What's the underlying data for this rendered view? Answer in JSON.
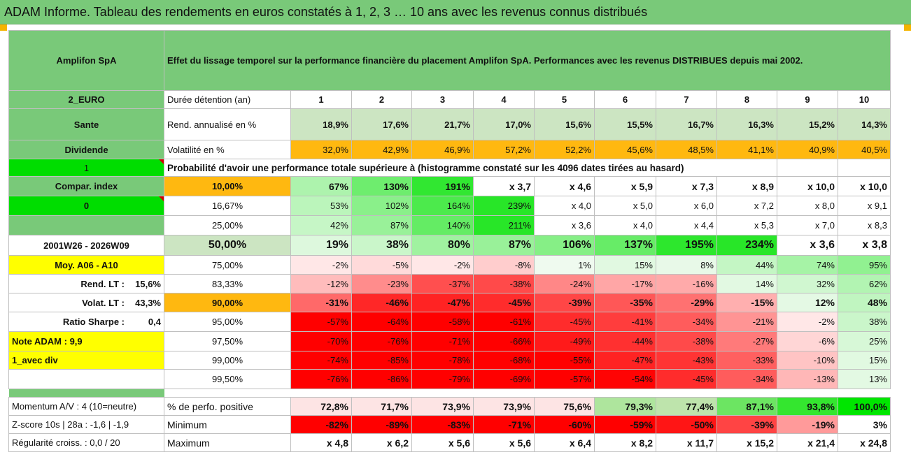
{
  "title": "ADAM Informe. Tableau des rendements en euros constatés à 1, 2, 3 … 10 ans avec les revenus connus distribués",
  "left": {
    "company": "Amplifon SpA",
    "ticker": "2_EURO",
    "sector": "Sante",
    "dividend_label": "Dividende",
    "dividend_value": "1",
    "compar_index_label": "Compar. index",
    "compar_index_value": "0",
    "period": "2001W26 - 2026W09",
    "moy": "Moy. A06 - A10",
    "rend_lt_label": "Rend. LT :",
    "rend_lt_value": "15,6%",
    "volat_lt_label": "Volat. LT :",
    "volat_lt_value": "43,3%",
    "sharpe_label": "Ratio Sharpe :",
    "sharpe_value": "0,4",
    "note_adam": "Note ADAM : 9,9",
    "avec_div": "1_avec div",
    "momentum": "Momentum A/V : 4 (10=neutre)",
    "zscore": "Z-score 10s | 28a : -1,6 | -1,9",
    "regularite": "Régularité croiss. : 0,0 / 20"
  },
  "description": "Effet du lissage temporel sur la performance financière du placement Amplifon SpA. Performances avec les revenus DISTRIBUES depuis mai 2002.",
  "rows": {
    "duree_label": "Durée détention (an)",
    "durations": [
      "1",
      "2",
      "3",
      "4",
      "5",
      "6",
      "7",
      "8",
      "9",
      "10"
    ],
    "rend_label": "Rend. annualisé en %",
    "rend": [
      "18,9%",
      "17,6%",
      "21,7%",
      "17,0%",
      "15,6%",
      "15,5%",
      "16,7%",
      "16,3%",
      "15,2%",
      "14,3%"
    ],
    "vol_label": "Volatilité en %",
    "vol": [
      "32,0%",
      "42,9%",
      "46,9%",
      "57,2%",
      "52,2%",
      "45,6%",
      "48,5%",
      "41,1%",
      "40,9%",
      "40,5%"
    ],
    "proba_label": "Probabilité d'avoir une performance totale supérieure à (histogramme constaté sur les 4096 dates tirées au hasard)"
  },
  "probabilities": [
    {
      "p": "10,00%",
      "values": [
        "67%",
        "130%",
        "191%",
        "x 3,7",
        "x 4,6",
        "x 5,9",
        "x 7,3",
        "x 8,9",
        "x 10,0",
        "x 10,0"
      ]
    },
    {
      "p": "16,67%",
      "values": [
        "53%",
        "102%",
        "164%",
        "239%",
        "x 4,0",
        "x 5,0",
        "x 6,0",
        "x 7,2",
        "x 8,0",
        "x 9,1"
      ]
    },
    {
      "p": "25,00%",
      "values": [
        "42%",
        "87%",
        "140%",
        "211%",
        "x 3,6",
        "x 4,0",
        "x 4,4",
        "x 5,3",
        "x 7,0",
        "x 8,3"
      ]
    },
    {
      "p": "50,00%",
      "values": [
        "19%",
        "38%",
        "80%",
        "87%",
        "106%",
        "137%",
        "195%",
        "234%",
        "x 3,6",
        "x 3,8"
      ]
    },
    {
      "p": "75,00%",
      "values": [
        "-2%",
        "-5%",
        "-2%",
        "-8%",
        "1%",
        "15%",
        "8%",
        "44%",
        "74%",
        "95%"
      ]
    },
    {
      "p": "83,33%",
      "values": [
        "-12%",
        "-23%",
        "-37%",
        "-38%",
        "-24%",
        "-17%",
        "-16%",
        "14%",
        "32%",
        "62%"
      ]
    },
    {
      "p": "90,00%",
      "values": [
        "-31%",
        "-46%",
        "-47%",
        "-45%",
        "-39%",
        "-35%",
        "-29%",
        "-15%",
        "12%",
        "48%"
      ]
    },
    {
      "p": "95,00%",
      "values": [
        "-57%",
        "-64%",
        "-58%",
        "-61%",
        "-45%",
        "-41%",
        "-34%",
        "-21%",
        "-2%",
        "38%"
      ]
    },
    {
      "p": "97,50%",
      "values": [
        "-70%",
        "-76%",
        "-71%",
        "-66%",
        "-49%",
        "-44%",
        "-38%",
        "-27%",
        "-6%",
        "25%"
      ]
    },
    {
      "p": "99,00%",
      "values": [
        "-74%",
        "-85%",
        "-78%",
        "-68%",
        "-55%",
        "-47%",
        "-43%",
        "-33%",
        "-10%",
        "15%"
      ]
    },
    {
      "p": "99,50%",
      "values": [
        "-76%",
        "-86%",
        "-79%",
        "-69%",
        "-57%",
        "-54%",
        "-45%",
        "-34%",
        "-13%",
        "13%"
      ]
    }
  ],
  "stats": {
    "pos_label": "% de perfo. positive",
    "pos": [
      "72,8%",
      "71,7%",
      "73,9%",
      "73,9%",
      "75,6%",
      "79,3%",
      "77,4%",
      "87,1%",
      "93,8%",
      "100,0%"
    ],
    "min_label": "Minimum",
    "min": [
      "-82%",
      "-89%",
      "-83%",
      "-71%",
      "-60%",
      "-59%",
      "-50%",
      "-39%",
      "-19%",
      "3%"
    ],
    "max_label": "Maximum",
    "max": [
      "x 4,8",
      "x 6,2",
      "x 5,6",
      "x 5,6",
      "x 6,4",
      "x 8,2",
      "x 11,7",
      "x 15,2",
      "x 21,4",
      "x 24,8"
    ]
  },
  "colors": {
    "header_green": "#79c979",
    "light_green": "#cce5c2",
    "orange": "#ffb810",
    "yellow": "#ffff00",
    "bright_green": "#00dd00",
    "red_text": "#d00000"
  }
}
